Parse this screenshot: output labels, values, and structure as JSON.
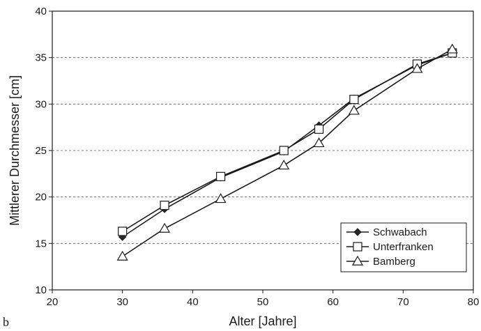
{
  "panel_label": "b",
  "chart_data": {
    "type": "line",
    "title": "",
    "xlabel": "Alter [Jahre]",
    "ylabel": "Mittlerer Durchmesser [cm]",
    "xlim": [
      20,
      80
    ],
    "ylim": [
      10,
      40
    ],
    "xticks": [
      "20",
      "30",
      "40",
      "50",
      "60",
      "70",
      "80"
    ],
    "yticks": [
      "10",
      "15",
      "20",
      "25",
      "30",
      "35",
      "40"
    ],
    "grid": "horizontal dashed",
    "legend_position": "bottom-right",
    "series": [
      {
        "name": "Schwabach",
        "marker": "filled-diamond",
        "color": "#1a1a1a",
        "x": [
          30,
          36,
          44,
          53,
          58,
          63,
          72,
          77
        ],
        "y": [
          15.7,
          18.7,
          22.1,
          24.9,
          27.7,
          30.6,
          34.2,
          35.5
        ]
      },
      {
        "name": "Unterfranken",
        "marker": "open-square",
        "color": "#1a1a1a",
        "x": [
          30,
          36,
          44,
          53,
          58,
          63,
          72,
          77
        ],
        "y": [
          16.3,
          19.1,
          22.2,
          25.0,
          27.3,
          30.5,
          34.3,
          35.5
        ]
      },
      {
        "name": "Bamberg",
        "marker": "open-triangle",
        "color": "#1a1a1a",
        "x": [
          30,
          36,
          44,
          53,
          58,
          63,
          72,
          77
        ],
        "y": [
          13.6,
          16.6,
          19.8,
          23.4,
          25.8,
          29.3,
          33.8,
          35.9
        ]
      }
    ]
  }
}
